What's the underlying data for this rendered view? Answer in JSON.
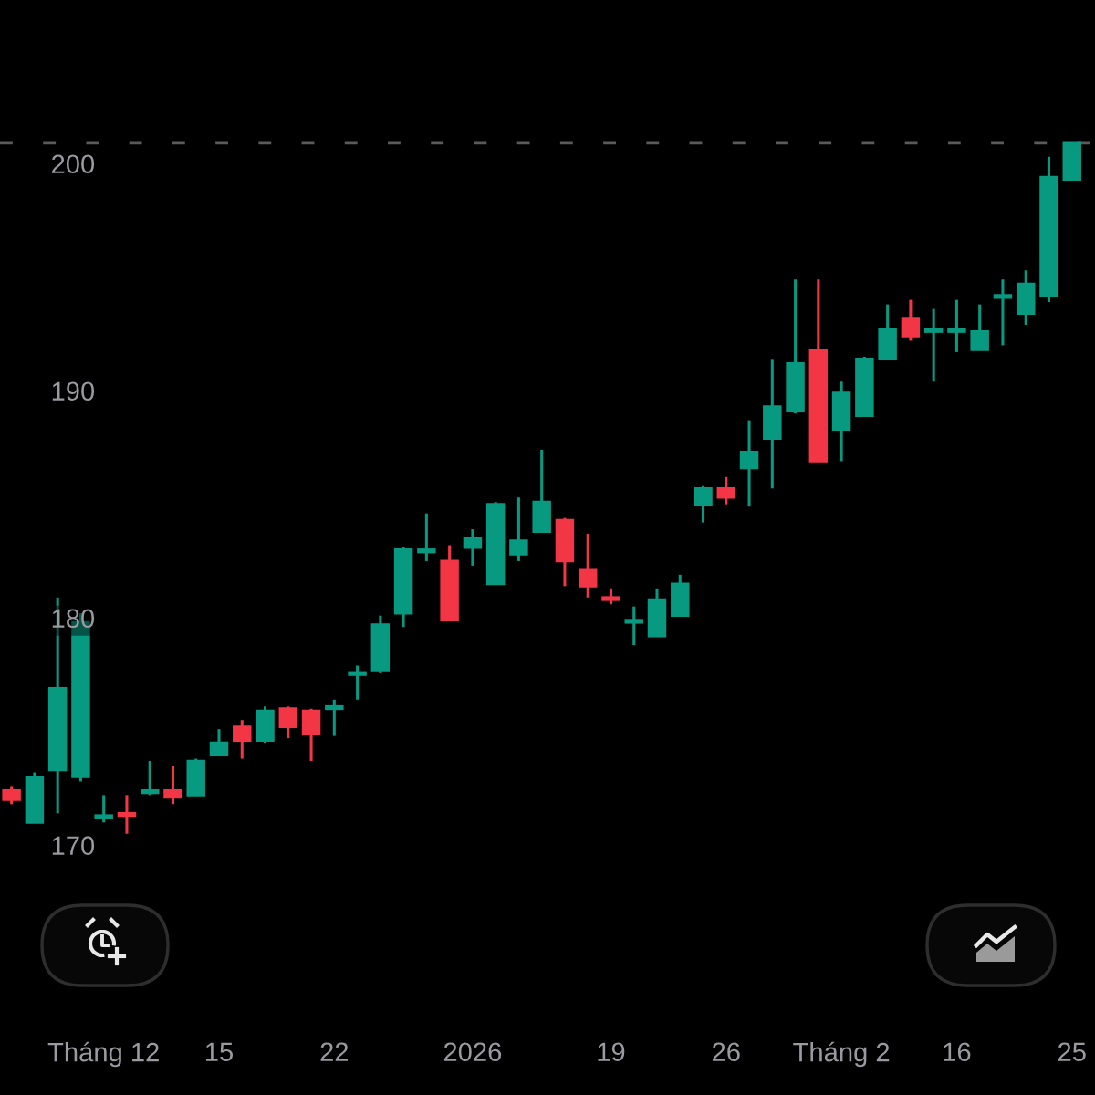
{
  "chart_data": {
    "type": "candlestick",
    "categories": [
      null,
      null,
      null,
      null,
      "Tháng 12",
      null,
      null,
      null,
      null,
      "15",
      null,
      null,
      null,
      null,
      "22",
      null,
      null,
      null,
      null,
      null,
      "2026",
      null,
      null,
      null,
      null,
      null,
      "19",
      null,
      null,
      null,
      null,
      "26",
      null,
      null,
      null,
      null,
      "Tháng 2",
      null,
      null,
      null,
      null,
      "16",
      null,
      null,
      null,
      null,
      "25"
    ],
    "ohlc": [
      [
        172.4,
        172.6,
        171.8,
        172.0
      ],
      [
        171.0,
        173.2,
        171.0,
        173.0
      ],
      [
        173.3,
        180.9,
        171.4,
        176.9
      ],
      [
        173.0,
        180.2,
        172.8,
        179.8
      ],
      [
        171.2,
        172.2,
        171.0,
        171.3
      ],
      [
        171.4,
        172.2,
        170.5,
        171.3
      ],
      [
        172.3,
        173.7,
        172.2,
        172.4
      ],
      [
        172.4,
        173.5,
        171.8,
        172.1
      ],
      [
        172.2,
        173.8,
        172.2,
        173.7
      ],
      [
        174.0,
        175.1,
        173.9,
        174.5
      ],
      [
        175.2,
        175.5,
        173.8,
        174.6
      ],
      [
        174.6,
        176.1,
        174.5,
        175.9
      ],
      [
        176.0,
        176.1,
        174.7,
        175.2
      ],
      [
        175.9,
        176.0,
        173.7,
        174.9
      ],
      [
        176.0,
        176.4,
        174.8,
        176.1
      ],
      [
        177.5,
        177.9,
        176.4,
        177.6
      ],
      [
        177.7,
        180.1,
        177.6,
        179.7
      ],
      [
        180.2,
        183.1,
        179.6,
        183.0
      ],
      [
        182.9,
        184.6,
        182.5,
        183.0
      ],
      [
        182.5,
        183.2,
        179.9,
        179.9
      ],
      [
        183.1,
        183.9,
        182.3,
        183.5
      ],
      [
        181.5,
        185.1,
        181.5,
        185.0
      ],
      [
        182.8,
        185.3,
        182.5,
        183.4
      ],
      [
        183.8,
        187.4,
        183.8,
        185.1
      ],
      [
        184.3,
        184.4,
        181.4,
        182.5
      ],
      [
        182.1,
        183.7,
        180.9,
        181.4
      ],
      [
        180.9,
        181.3,
        180.6,
        180.8
      ],
      [
        179.8,
        180.5,
        178.8,
        179.9
      ],
      [
        179.2,
        181.3,
        179.2,
        180.8
      ],
      [
        180.1,
        181.9,
        180.1,
        181.5
      ],
      [
        185.0,
        185.8,
        184.2,
        185.7
      ],
      [
        185.7,
        186.2,
        185.0,
        185.3
      ],
      [
        186.6,
        188.7,
        184.9,
        187.3
      ],
      [
        187.9,
        191.4,
        185.7,
        189.3
      ],
      [
        189.1,
        194.9,
        189.0,
        191.2
      ],
      [
        191.8,
        194.9,
        186.9,
        186.9
      ],
      [
        188.3,
        190.4,
        186.9,
        189.9
      ],
      [
        188.9,
        191.5,
        188.9,
        191.4
      ],
      [
        191.4,
        193.8,
        191.4,
        192.7
      ],
      [
        193.2,
        194.0,
        192.2,
        192.4
      ],
      [
        192.6,
        193.6,
        190.4,
        192.7
      ],
      [
        192.6,
        194.0,
        191.7,
        192.7
      ],
      [
        191.8,
        193.8,
        191.8,
        192.6
      ],
      [
        194.1,
        194.9,
        192.0,
        194.2
      ],
      [
        193.4,
        195.3,
        192.9,
        194.7
      ],
      [
        194.2,
        200.3,
        193.9,
        199.4
      ],
      [
        199.3,
        200.9,
        199.3,
        200.9
      ]
    ],
    "colors": [
      "#f23645",
      "#089981",
      "#089981",
      "#089981",
      "#089981",
      "#f23645",
      "#089981",
      "#f23645",
      "#089981",
      "#089981",
      "#f23645",
      "#089981",
      "#f23645",
      "#f23645",
      "#089981",
      "#089981",
      "#089981",
      "#089981",
      "#089981",
      "#f23645",
      "#089981",
      "#089981",
      "#089981",
      "#089981",
      "#f23645",
      "#f23645",
      "#f23645",
      "#089981",
      "#089981",
      "#089981",
      "#089981",
      "#f23645",
      "#089981",
      "#089981",
      "#089981",
      "#f23645",
      "#089981",
      "#089981",
      "#089981",
      "#f23645",
      "#089981",
      "#089981",
      "#089981",
      "#089981",
      "#089981",
      "#089981",
      "#089981"
    ],
    "ylim": [
      159.0,
      207.2
    ],
    "yticks": [
      170,
      180,
      190,
      200
    ],
    "ref_lines": [
      {
        "axis": "y",
        "value": 200.9,
        "color": "#5a5a5a",
        "line_style": "dashed"
      }
    ]
  }
}
